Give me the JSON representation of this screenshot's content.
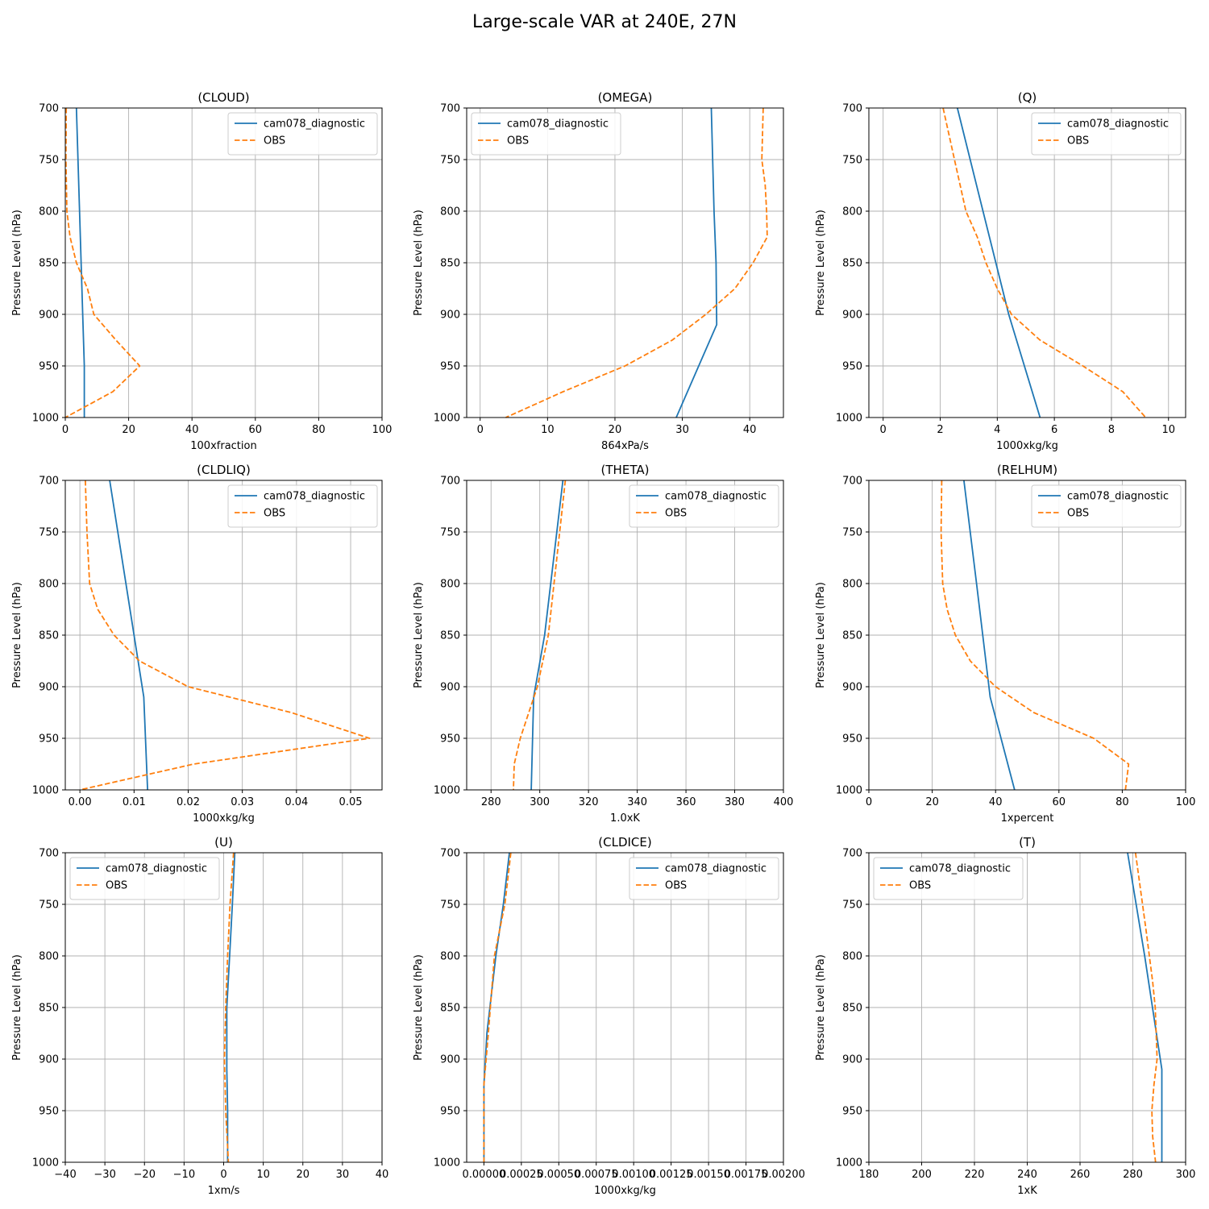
{
  "suptitle": "Large-scale VAR at 240E, 27N",
  "colors": {
    "model": "#1f77b4",
    "obs": "#ff7f0e",
    "grid": "#b0b0b0"
  },
  "chart_data": [
    {
      "type": "line",
      "title": "(CLOUD)",
      "xlabel": "100xfraction",
      "ylabel": "Pressure Level (hPa)",
      "xlim": [
        0,
        100
      ],
      "ylim": [
        700,
        1000
      ],
      "xticks": [
        0,
        20,
        40,
        60,
        80,
        100
      ],
      "xtick_labels": [
        "0",
        "20",
        "40",
        "60",
        "80",
        "100"
      ],
      "yticks": [
        700,
        750,
        800,
        850,
        900,
        950,
        1000
      ],
      "grid": true,
      "legend": "upper right",
      "series": [
        {
          "name": "cam078_diagnostic",
          "style": "solid",
          "x": [
            3.5,
            5.5,
            6,
            6
          ],
          "y": [
            700,
            900,
            950,
            1000
          ]
        },
        {
          "name": "OBS",
          "style": "dashed",
          "x": [
            0.3,
            0.2,
            0.5,
            1.5,
            3.5,
            7,
            9,
            16,
            23.5,
            15,
            0
          ],
          "y": [
            700,
            750,
            800,
            825,
            850,
            875,
            900,
            925,
            950,
            975,
            1000
          ]
        }
      ]
    },
    {
      "type": "line",
      "title": "(OMEGA)",
      "xlabel": "864xPa/s",
      "ylabel": "Pressure Level (hPa)",
      "xlim": [
        -2,
        45
      ],
      "ylim": [
        700,
        1000
      ],
      "xticks": [
        0,
        10,
        20,
        30,
        40
      ],
      "xtick_labels": [
        "0",
        "10",
        "20",
        "30",
        "40"
      ],
      "yticks": [
        700,
        750,
        800,
        850,
        900,
        950,
        1000
      ],
      "grid": true,
      "legend": "upper left",
      "series": [
        {
          "name": "cam078_diagnostic",
          "style": "solid",
          "x": [
            34.3,
            34.7,
            35,
            35.1,
            29.1
          ],
          "y": [
            700,
            800,
            850,
            910,
            1000
          ]
        },
        {
          "name": "OBS",
          "style": "dashed",
          "x": [
            42,
            41.8,
            42.3,
            42.5,
            42.6,
            40.5,
            37.8,
            33.5,
            28.5,
            21.5,
            12.3,
            3.8
          ],
          "y": [
            700,
            750,
            775,
            800,
            825,
            850,
            875,
            900,
            925,
            950,
            975,
            1000
          ]
        }
      ]
    },
    {
      "type": "line",
      "title": "(Q)",
      "xlabel": "1000xkg/kg",
      "ylabel": "Pressure Level (hPa)",
      "xlim": [
        -0.5,
        10.6
      ],
      "ylim": [
        700,
        1000
      ],
      "xticks": [
        0,
        2,
        4,
        6,
        8,
        10
      ],
      "xtick_labels": [
        "0",
        "2",
        "4",
        "6",
        "8",
        "10"
      ],
      "yticks": [
        700,
        750,
        800,
        850,
        900,
        950,
        1000
      ],
      "grid": true,
      "legend": "upper right",
      "series": [
        {
          "name": "cam078_diagnostic",
          "style": "solid",
          "x": [
            2.6,
            3.5,
            4.4,
            5.5
          ],
          "y": [
            700,
            800,
            900,
            1000
          ]
        },
        {
          "name": "OBS",
          "style": "dashed",
          "x": [
            2.1,
            2.5,
            2.9,
            3.3,
            3.6,
            4,
            4.5,
            5.5,
            7,
            8.4,
            9.2
          ],
          "y": [
            700,
            750,
            800,
            825,
            850,
            875,
            900,
            925,
            950,
            975,
            1000
          ]
        }
      ]
    },
    {
      "type": "line",
      "title": "(CLDLIQ)",
      "xlabel": "1000xkg/kg",
      "ylabel": "Pressure Level (hPa)",
      "xlim": [
        -0.0027,
        0.0558
      ],
      "ylim": [
        700,
        1000
      ],
      "xticks": [
        0,
        0.01,
        0.02,
        0.03,
        0.04,
        0.05
      ],
      "xtick_labels": [
        "0.00",
        "0.01",
        "0.02",
        "0.03",
        "0.04",
        "0.05"
      ],
      "yticks": [
        700,
        750,
        800,
        850,
        900,
        950,
        1000
      ],
      "grid": true,
      "legend": "upper right",
      "series": [
        {
          "name": "cam078_diagnostic",
          "style": "solid",
          "x": [
            0.0055,
            0.01,
            0.0118,
            0.0125
          ],
          "y": [
            700,
            850,
            910,
            1000
          ]
        },
        {
          "name": "OBS",
          "style": "dashed",
          "x": [
            0.001,
            0.0013,
            0.0018,
            0.0033,
            0.0063,
            0.011,
            0.02,
            0.039,
            0.0535,
            0.021,
            0
          ],
          "y": [
            700,
            750,
            800,
            825,
            850,
            875,
            900,
            925,
            950,
            975,
            1000
          ]
        }
      ]
    },
    {
      "type": "line",
      "title": "(THETA)",
      "xlabel": "1.0xK",
      "ylabel": "Pressure Level (hPa)",
      "xlim": [
        270,
        400
      ],
      "ylim": [
        700,
        1000
      ],
      "xticks": [
        280,
        300,
        320,
        340,
        360,
        380,
        400
      ],
      "xtick_labels": [
        "280",
        "300",
        "320",
        "340",
        "360",
        "380",
        "400"
      ],
      "yticks": [
        700,
        750,
        800,
        850,
        900,
        950,
        1000
      ],
      "grid": true,
      "legend": "upper right",
      "series": [
        {
          "name": "cam078_diagnostic",
          "style": "solid",
          "x": [
            309.5,
            302,
            297.5,
            296.5
          ],
          "y": [
            700,
            850,
            910,
            1000
          ]
        },
        {
          "name": "OBS",
          "style": "dashed",
          "x": [
            310.5,
            307,
            303.5,
            299,
            292,
            289.5,
            289.2
          ],
          "y": [
            700,
            775,
            850,
            900,
            950,
            975,
            1000
          ]
        }
      ]
    },
    {
      "type": "line",
      "title": "(RELHUM)",
      "xlabel": "1xpercent",
      "ylabel": "Pressure Level (hPa)",
      "xlim": [
        0,
        100
      ],
      "ylim": [
        700,
        1000
      ],
      "xticks": [
        0,
        20,
        40,
        60,
        80,
        100
      ],
      "xtick_labels": [
        "0",
        "20",
        "40",
        "60",
        "80",
        "100"
      ],
      "yticks": [
        700,
        750,
        800,
        850,
        900,
        950,
        1000
      ],
      "grid": true,
      "legend": "upper right",
      "series": [
        {
          "name": "cam078_diagnostic",
          "style": "solid",
          "x": [
            30,
            34,
            38.3,
            46
          ],
          "y": [
            700,
            800,
            910,
            1000
          ]
        },
        {
          "name": "OBS",
          "style": "dashed",
          "x": [
            23,
            22.8,
            23.3,
            24.7,
            27.3,
            32,
            40,
            52,
            71,
            82,
            81
          ],
          "y": [
            700,
            750,
            800,
            825,
            850,
            875,
            900,
            925,
            950,
            975,
            1000
          ]
        }
      ]
    },
    {
      "type": "line",
      "title": "(U)",
      "xlabel": "1xm/s",
      "ylabel": "Pressure Level (hPa)",
      "xlim": [
        -40,
        40
      ],
      "ylim": [
        700,
        1000
      ],
      "xticks": [
        -40,
        -30,
        -20,
        -10,
        0,
        10,
        20,
        30,
        40
      ],
      "xtick_labels": [
        "−40",
        "−30",
        "−20",
        "−10",
        "0",
        "10",
        "20",
        "30",
        "40"
      ],
      "yticks": [
        700,
        750,
        800,
        850,
        900,
        950,
        1000
      ],
      "grid": true,
      "legend": "upper left",
      "series": [
        {
          "name": "cam078_diagnostic",
          "style": "solid",
          "x": [
            2.8,
            2.2,
            1.5,
            0.8,
            0.8,
            1.0,
            1.0
          ],
          "y": [
            700,
            750,
            800,
            850,
            910,
            950,
            1000
          ]
        },
        {
          "name": "OBS",
          "style": "dashed",
          "x": [
            2.5,
            1.6,
            1.0,
            0.5,
            0.2,
            0.5,
            1.2
          ],
          "y": [
            700,
            750,
            800,
            850,
            900,
            950,
            1000
          ]
        }
      ]
    },
    {
      "type": "line",
      "title": "(CLDICE)",
      "xlabel": "1000xkg/kg",
      "ylabel": "Pressure Level (hPa)",
      "xlim": [
        -0.000115,
        0.002
      ],
      "ylim": [
        700,
        1000
      ],
      "xticks": [
        0,
        0.00025,
        0.0005,
        0.00075,
        0.001,
        0.00125,
        0.0015,
        0.00175,
        0.002
      ],
      "xtick_labels": [
        "0.00000",
        "0.00025",
        "0.00050",
        "0.00075",
        "0.00100",
        "0.00125",
        "0.00150",
        "0.00175",
        "0.00200"
      ],
      "yticks": [
        700,
        750,
        800,
        850,
        900,
        950,
        1000
      ],
      "grid": true,
      "legend": "upper right",
      "series": [
        {
          "name": "cam078_diagnostic",
          "style": "solid",
          "x": [
            0.00017,
            0.00013,
            8e-05,
            2e-05,
            0,
            0
          ],
          "y": [
            700,
            750,
            800,
            875,
            925,
            1000
          ]
        },
        {
          "name": "OBS",
          "style": "dashed",
          "x": [
            0.00018,
            0.00014,
            7e-05,
            3e-05,
            0,
            0
          ],
          "y": [
            700,
            750,
            800,
            875,
            925,
            1000
          ]
        }
      ]
    },
    {
      "type": "line",
      "title": "(T)",
      "xlabel": "1xK",
      "ylabel": "Pressure Level (hPa)",
      "xlim": [
        180,
        300
      ],
      "ylim": [
        700,
        1000
      ],
      "xticks": [
        180,
        200,
        220,
        240,
        260,
        280,
        300
      ],
      "xtick_labels": [
        "180",
        "200",
        "220",
        "240",
        "260",
        "280",
        "300"
      ],
      "yticks": [
        700,
        750,
        800,
        850,
        900,
        950,
        1000
      ],
      "grid": true,
      "legend": "upper left",
      "series": [
        {
          "name": "cam078_diagnostic",
          "style": "solid",
          "x": [
            278,
            284.5,
            291,
            291
          ],
          "y": [
            700,
            800,
            910,
            1000
          ]
        },
        {
          "name": "OBS",
          "style": "dashed",
          "x": [
            281,
            285,
            287.5,
            288.5,
            289.2,
            288,
            287.2,
            287.5,
            288.6
          ],
          "y": [
            700,
            775,
            825,
            850,
            900,
            925,
            950,
            975,
            1000
          ]
        }
      ]
    }
  ]
}
